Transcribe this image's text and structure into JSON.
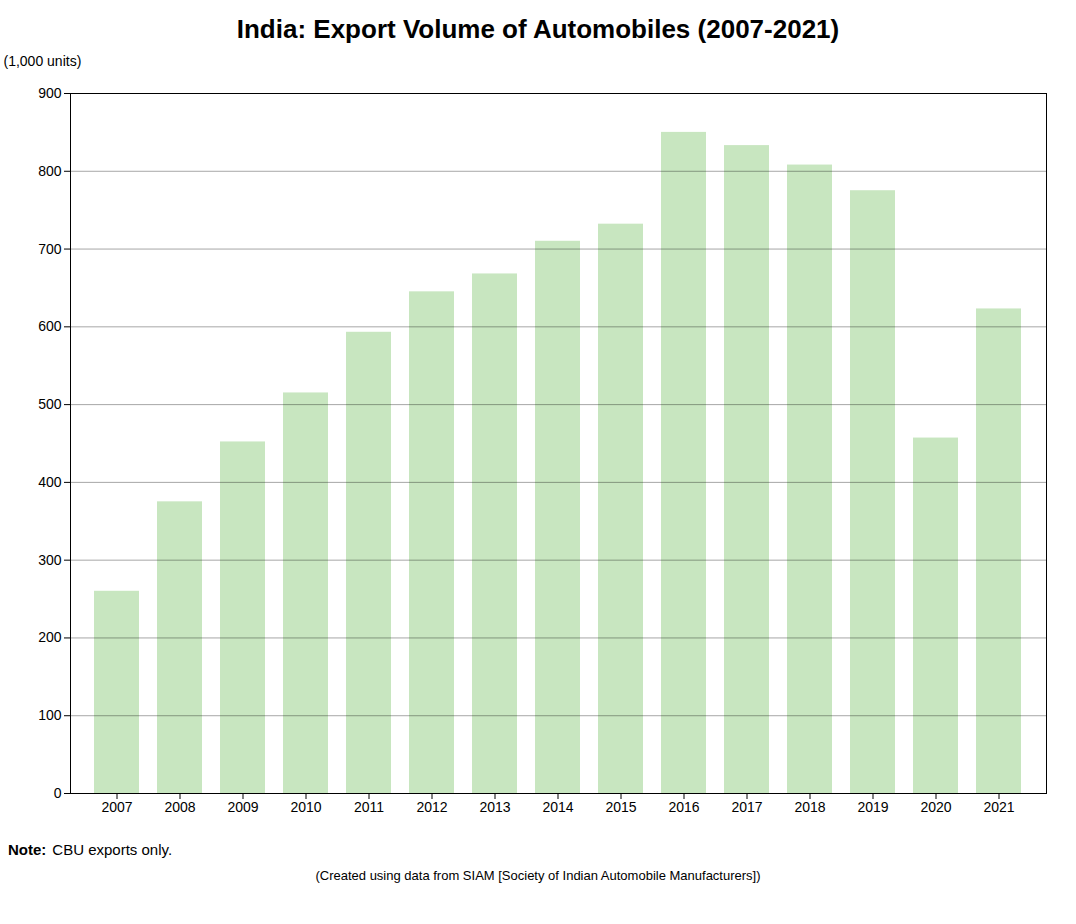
{
  "chart_data": {
    "type": "bar",
    "title": "India: Export Volume of Automobiles (2007-2021)",
    "ylabel": "(1,000 units)",
    "categories": [
      "2007",
      "2008",
      "2009",
      "2010",
      "2011",
      "2012",
      "2013",
      "2014",
      "2015",
      "2016",
      "2017",
      "2018",
      "2019",
      "2020",
      "2021"
    ],
    "values": [
      260,
      375,
      452,
      515,
      593,
      645,
      668,
      710,
      732,
      850,
      833,
      808,
      775,
      457,
      623
    ],
    "color": "#c8e6c0",
    "ylim": [
      0,
      900
    ],
    "yticks": [
      0,
      100,
      200,
      300,
      400,
      500,
      600,
      700,
      800,
      900
    ],
    "grid": true,
    "note_label": "Note:",
    "note": "CBU exports only.",
    "source": "(Created using data from SIAM [Society of Indian Automobile Manufacturers])"
  }
}
